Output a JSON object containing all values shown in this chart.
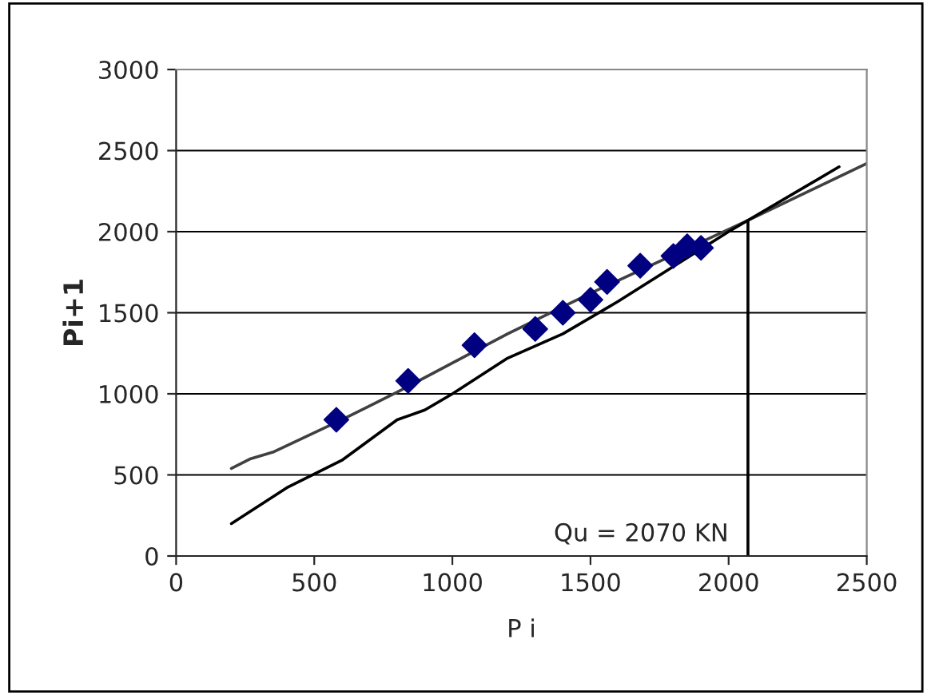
{
  "chart_data": {
    "type": "scatter",
    "xlabel": "P i",
    "ylabel": "Pi+1",
    "xlim": [
      0,
      2500
    ],
    "ylim": [
      0,
      3000
    ],
    "xticks": [
      0,
      500,
      1000,
      1500,
      2000,
      2500
    ],
    "yticks": [
      0,
      500,
      1000,
      1500,
      2000,
      2500,
      3000
    ],
    "grid": "y",
    "legend": false,
    "annotations": [
      "Qu = 2070 KN"
    ],
    "series": [
      {
        "type": "line",
        "color": "#404040",
        "x": [
          200,
          270,
          350,
          600,
          800,
          1000,
          1200,
          1500,
          2070,
          2500
        ],
        "values": [
          540,
          600,
          640,
          840,
          1010,
          1190,
          1370,
          1620,
          2070,
          2420
        ]
      },
      {
        "type": "line",
        "color": "#000000",
        "x": [
          200,
          400,
          600,
          800,
          900,
          1000,
          1200,
          1400,
          1600,
          2000,
          2400
        ],
        "values": [
          200,
          420,
          590,
          840,
          900,
          1000,
          1220,
          1370,
          1570,
          2000,
          2400
        ]
      },
      {
        "type": "line",
        "color": "#000000",
        "x": [
          2070,
          2070
        ],
        "values": [
          0,
          2070
        ]
      },
      {
        "color": "#000080",
        "marker": "diamond",
        "x": [
          580,
          840,
          1080,
          1300,
          1400,
          1500,
          1560,
          1680,
          1800,
          1850,
          1900
        ],
        "values": [
          840,
          1080,
          1300,
          1400,
          1500,
          1580,
          1690,
          1790,
          1850,
          1910,
          1900
        ]
      }
    ]
  }
}
